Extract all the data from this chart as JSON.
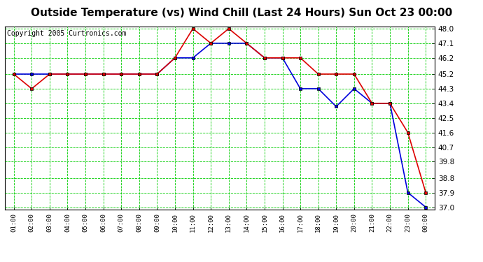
{
  "title": "Outside Temperature (vs) Wind Chill (Last 24 Hours) Sun Oct 23 00:00",
  "copyright": "Copyright 2005 Curtronics.com",
  "x_labels": [
    "01:00",
    "02:00",
    "03:00",
    "04:00",
    "05:00",
    "06:00",
    "07:00",
    "08:00",
    "09:00",
    "10:00",
    "11:00",
    "12:00",
    "13:00",
    "14:00",
    "15:00",
    "16:00",
    "17:00",
    "18:00",
    "19:00",
    "20:00",
    "21:00",
    "22:00",
    "23:00",
    "00:00"
  ],
  "outside_temp": [
    45.2,
    45.2,
    45.2,
    45.2,
    45.2,
    45.2,
    45.2,
    45.2,
    45.2,
    46.2,
    46.2,
    47.1,
    47.1,
    47.1,
    46.2,
    46.2,
    44.3,
    44.3,
    43.2,
    44.3,
    43.4,
    43.4,
    37.9,
    37.0
  ],
  "wind_chill": [
    45.2,
    44.3,
    45.2,
    45.2,
    45.2,
    45.2,
    45.2,
    45.2,
    45.2,
    46.2,
    48.0,
    47.1,
    48.0,
    47.1,
    46.2,
    46.2,
    46.2,
    45.2,
    45.2,
    45.2,
    43.4,
    43.4,
    41.6,
    37.9
  ],
  "ylim_min": 37.0,
  "ylim_max": 48.0,
  "yticks": [
    48.0,
    47.1,
    46.2,
    45.2,
    44.3,
    43.4,
    42.5,
    41.6,
    40.7,
    39.8,
    38.8,
    37.9,
    37.0
  ],
  "outside_color": "#0000dd",
  "wind_chill_color": "#dd0000",
  "bg_color": "#ffffff",
  "plot_bg_color": "#ffffff",
  "grid_color": "#00cc00",
  "title_fontsize": 11,
  "copyright_fontsize": 7
}
